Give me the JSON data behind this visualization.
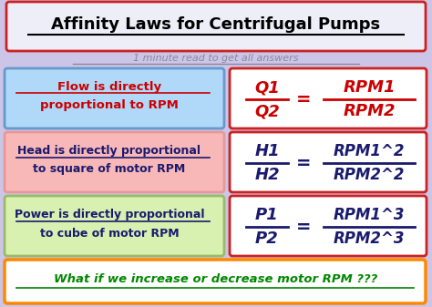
{
  "title": "Affinity Laws for Centrifugal Pumps",
  "subtitle": "1 minute read to get all answers",
  "bg_color": "#cdc5e8",
  "title_bg": "#eeeef8",
  "title_border": "#cc2222",
  "title_color": "#000000",
  "subtitle_color": "#888899",
  "row1_left_text_line1": "Flow is directly",
  "row1_left_text_line2": "proportional to RPM",
  "row1_left_bg": "#b0d8f8",
  "row1_left_border": "#6699cc",
  "row1_left_color": "#cc0000",
  "row1_right_num": "Q1",
  "row1_right_den": "Q2",
  "row1_right_rnum": "RPM1",
  "row1_right_rden": "RPM2",
  "row1_right_bg": "#ffffff",
  "row1_right_border": "#cc2222",
  "row1_right_color": "#cc0000",
  "row2_left_text_line1": "Head is directly proportional",
  "row2_left_text_line2": "to square of motor RPM",
  "row2_left_bg": "#f8b8b8",
  "row2_left_border": "#e89898",
  "row2_left_color": "#1a1a6e",
  "row2_right_num": "H1",
  "row2_right_den": "H2",
  "row2_right_rnum": "RPM1^2",
  "row2_right_rden": "RPM2^2",
  "row2_right_bg": "#ffffff",
  "row2_right_border": "#cc2222",
  "row2_right_color": "#1a1a6e",
  "row3_left_text_line1": "Power is directly proportional",
  "row3_left_text_line2": "to cube of motor RPM",
  "row3_left_bg": "#d8f0b0",
  "row3_left_border": "#99bb66",
  "row3_left_color": "#1a1a6e",
  "row3_right_num": "P1",
  "row3_right_den": "P2",
  "row3_right_rnum": "RPM1^3",
  "row3_right_rden": "RPM2^3",
  "row3_right_bg": "#ffffff",
  "row3_right_border": "#cc2222",
  "row3_right_color": "#1a1a6e",
  "bottom_text": "What if we increase or decrease motor RPM ???",
  "bottom_bg": "#ffffff",
  "bottom_border": "#ff8800",
  "bottom_color": "#008800"
}
